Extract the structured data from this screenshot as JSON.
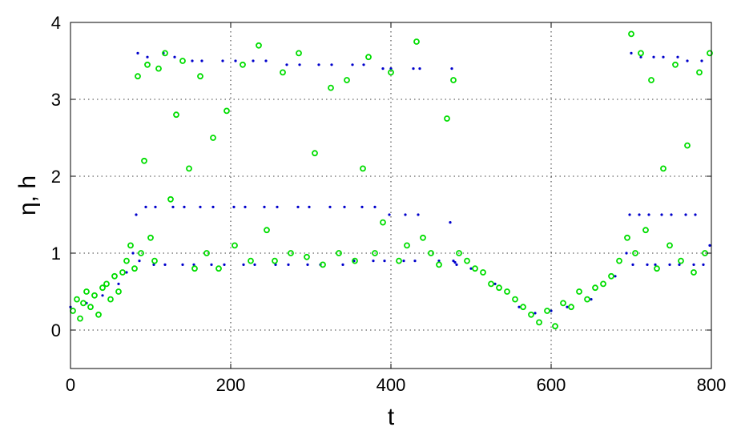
{
  "chart_data": {
    "type": "scatter",
    "xlabel": "t",
    "ylabel": "η, h",
    "xlim": [
      0,
      800
    ],
    "ylim": [
      -0.5,
      4
    ],
    "xticks": [
      0,
      200,
      400,
      600,
      800
    ],
    "yticks": [
      0,
      1,
      2,
      3,
      4
    ],
    "xtick_labels": [
      "0",
      "200",
      "400",
      "600",
      "800"
    ],
    "ytick_labels": [
      "0",
      "1",
      "2",
      "3",
      "4"
    ],
    "grid": true,
    "legend": "none",
    "colors": {
      "model": "#0000cc",
      "observed": "#00dd00"
    },
    "series": [
      {
        "marker": "dot",
        "color": "#0000cc",
        "x": [
          0,
          20,
          40,
          60,
          70,
          78,
          82,
          84,
          86,
          94,
          96,
          104,
          106,
          116,
          118,
          128,
          130,
          140,
          142,
          152,
          154,
          162,
          164,
          176,
          178,
          190,
          192,
          204,
          206,
          216,
          218,
          228,
          230,
          242,
          244,
          256,
          258,
          270,
          272,
          284,
          286,
          296,
          298,
          310,
          312,
          324,
          326,
          340,
          342,
          352,
          354,
          364,
          366,
          378,
          380,
          390,
          392,
          398,
          400,
          416,
          418,
          428,
          430,
          434,
          436,
          460,
          474,
          476,
          478,
          480,
          482,
          500,
          530,
          560,
          580,
          600,
          620,
          650,
          680,
          694,
          698,
          700,
          702,
          710,
          712,
          720,
          722,
          728,
          730,
          738,
          740,
          748,
          750,
          758,
          760,
          768,
          770,
          778,
          780,
          788,
          790,
          798
        ],
        "y": [
          0.3,
          0.35,
          0.45,
          0.6,
          0.75,
          1.0,
          1.5,
          3.6,
          0.9,
          1.6,
          3.55,
          0.85,
          1.6,
          3.6,
          0.85,
          1.6,
          3.55,
          0.85,
          1.6,
          3.5,
          0.85,
          1.6,
          3.5,
          0.85,
          1.6,
          3.5,
          0.85,
          1.6,
          3.5,
          0.85,
          1.6,
          3.5,
          0.85,
          1.6,
          3.5,
          0.85,
          1.6,
          3.45,
          0.85,
          1.6,
          3.45,
          0.85,
          1.6,
          3.45,
          0.85,
          1.6,
          3.45,
          0.85,
          1.6,
          3.45,
          0.9,
          1.6,
          3.45,
          0.9,
          1.6,
          3.4,
          0.9,
          1.5,
          3.4,
          0.9,
          1.5,
          3.4,
          0.9,
          1.5,
          3.4,
          0.9,
          1.4,
          3.4,
          0.9,
          0.88,
          0.85,
          0.8,
          0.6,
          0.3,
          0.22,
          0.25,
          0.3,
          0.4,
          0.7,
          1.0,
          1.5,
          3.6,
          0.85,
          1.5,
          3.55,
          0.85,
          1.5,
          3.55,
          0.85,
          1.5,
          3.55,
          0.85,
          1.5,
          3.55,
          0.85,
          1.5,
          3.5,
          0.85,
          1.5,
          3.5,
          0.85,
          1.1
        ]
      },
      {
        "marker": "circle",
        "color": "#00dd00",
        "x": [
          3,
          8,
          12,
          16,
          20,
          25,
          30,
          35,
          40,
          45,
          50,
          55,
          60,
          65,
          70,
          75,
          80,
          84,
          88,
          92,
          96,
          100,
          105,
          110,
          118,
          125,
          132,
          140,
          148,
          155,
          162,
          170,
          178,
          185,
          195,
          205,
          215,
          225,
          235,
          245,
          255,
          265,
          275,
          285,
          295,
          305,
          315,
          325,
          335,
          345,
          355,
          365,
          372,
          380,
          390,
          400,
          410,
          420,
          432,
          440,
          450,
          460,
          470,
          478,
          485,
          495,
          505,
          515,
          525,
          535,
          545,
          555,
          565,
          575,
          585,
          595,
          605,
          615,
          625,
          635,
          645,
          655,
          665,
          675,
          685,
          695,
          700,
          705,
          712,
          718,
          725,
          732,
          740,
          748,
          755,
          762,
          770,
          778,
          785,
          792,
          798
        ],
        "y": [
          0.25,
          0.4,
          0.15,
          0.35,
          0.5,
          0.3,
          0.45,
          0.2,
          0.55,
          0.6,
          0.4,
          0.7,
          0.5,
          0.75,
          0.9,
          1.1,
          0.8,
          3.3,
          1.0,
          2.2,
          3.45,
          1.2,
          0.9,
          3.4,
          3.6,
          1.7,
          2.8,
          3.5,
          2.1,
          0.8,
          3.3,
          1.0,
          2.5,
          0.8,
          2.85,
          1.1,
          3.45,
          0.9,
          3.7,
          1.3,
          0.9,
          3.35,
          1.0,
          3.6,
          0.95,
          2.3,
          0.85,
          3.15,
          1.0,
          3.25,
          0.9,
          2.1,
          3.55,
          1.0,
          1.4,
          3.35,
          0.9,
          1.1,
          3.75,
          1.2,
          1.0,
          0.85,
          2.75,
          3.25,
          1.0,
          0.9,
          0.8,
          0.75,
          0.6,
          0.55,
          0.5,
          0.4,
          0.3,
          0.2,
          0.1,
          0.25,
          0.05,
          0.35,
          0.3,
          0.5,
          0.4,
          0.55,
          0.6,
          0.7,
          0.9,
          1.2,
          3.85,
          1.0,
          3.6,
          1.3,
          3.25,
          0.8,
          2.1,
          1.1,
          3.45,
          0.9,
          2.4,
          0.75,
          3.35,
          1.0,
          3.6
        ]
      }
    ]
  }
}
